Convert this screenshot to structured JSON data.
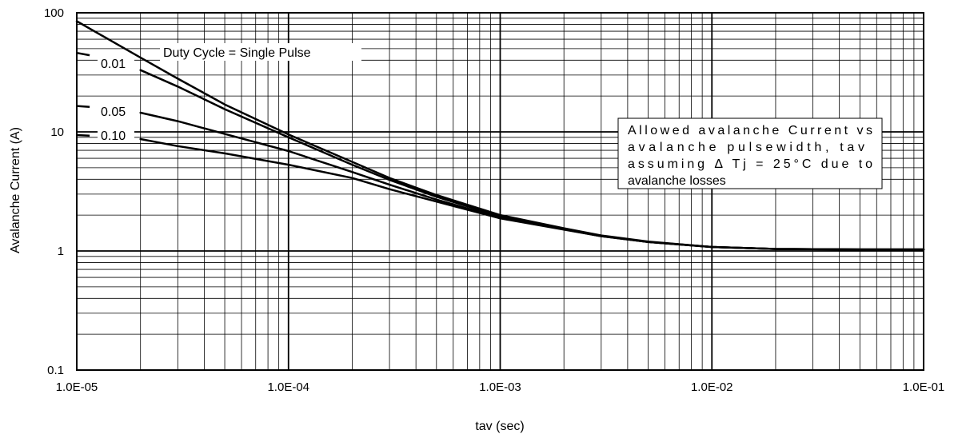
{
  "chart_data": {
    "type": "line",
    "title": "",
    "xlabel": "tav (sec)",
    "ylabel": "Avalanche Current (A)",
    "x_scale": "log",
    "y_scale": "log",
    "xlim": [
      1e-05,
      0.1
    ],
    "ylim": [
      0.1,
      100
    ],
    "grid": true,
    "x_tick_labels": [
      "1.0E-05",
      "1.0E-04",
      "1.0E-03",
      "1.0E-02",
      "1.0E-01"
    ],
    "y_tick_labels": [
      "0.1",
      "1",
      "10",
      "100"
    ],
    "series": [
      {
        "name": "Duty Cycle = Single Pulse",
        "x": [
          1e-05,
          2e-05,
          3e-05,
          5e-05,
          0.0001,
          0.0002,
          0.0003,
          0.0005,
          0.001,
          0.002,
          0.003,
          0.005,
          0.01,
          0.02,
          0.05,
          0.1
        ],
        "y": [
          85,
          42,
          28,
          17,
          9.5,
          5.6,
          4.1,
          2.95,
          2.0,
          1.55,
          1.35,
          1.2,
          1.08,
          1.04,
          1.03,
          1.03
        ]
      },
      {
        "name": "0.01",
        "x": [
          2e-05,
          3e-05,
          5e-05,
          0.0001,
          0.0002,
          0.0003,
          0.0005,
          0.001,
          0.002,
          0.003,
          0.005,
          0.01,
          0.02,
          0.05,
          0.1
        ],
        "y": [
          33,
          24,
          15.5,
          9.0,
          5.3,
          3.95,
          2.85,
          1.95,
          1.53,
          1.34,
          1.19,
          1.08,
          1.04,
          1.03,
          1.03
        ]
      },
      {
        "name": "0.05",
        "x": [
          2e-05,
          3e-05,
          5e-05,
          0.0001,
          0.0002,
          0.0003,
          0.0005,
          0.001,
          0.002,
          0.003,
          0.005,
          0.01,
          0.02,
          0.05,
          0.1
        ],
        "y": [
          14.5,
          12.3,
          9.6,
          6.9,
          4.6,
          3.6,
          2.7,
          1.9,
          1.52,
          1.33,
          1.19,
          1.08,
          1.04,
          1.03,
          1.03
        ]
      },
      {
        "name": "0.10",
        "x": [
          2e-05,
          3e-05,
          5e-05,
          0.0001,
          0.0002,
          0.0003,
          0.0005,
          0.001,
          0.002,
          0.003,
          0.005,
          0.01,
          0.02,
          0.05,
          0.1
        ],
        "y": [
          8.7,
          7.6,
          6.6,
          5.3,
          4.1,
          3.3,
          2.6,
          1.88,
          1.51,
          1.33,
          1.19,
          1.08,
          1.04,
          1.03,
          1.03
        ]
      }
    ],
    "stub_lines": [
      {
        "x": [
          1e-05,
          1.15e-05
        ],
        "y": [
          46,
          44
        ]
      },
      {
        "x": [
          1e-05,
          1.15e-05
        ],
        "y": [
          16.5,
          16.2
        ]
      },
      {
        "x": [
          1e-05,
          1.15e-05
        ],
        "y": [
          9.4,
          9.3
        ]
      }
    ],
    "annotation": {
      "lines": [
        "Allowed avalanche Current vs",
        "avalanche pulsewidth, tav",
        "assuming Δ Tj = 25°C due to",
        "avalanche losses"
      ]
    }
  }
}
